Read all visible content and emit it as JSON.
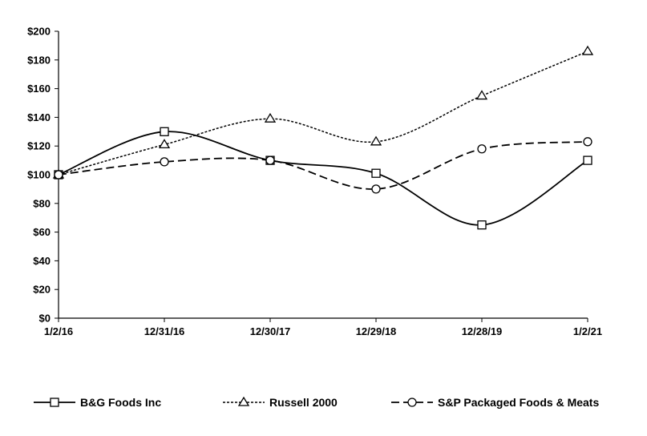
{
  "chart_data": {
    "type": "line",
    "title": "",
    "xlabel": "",
    "ylabel": "",
    "categories": [
      "1/2/16",
      "12/31/16",
      "12/30/17",
      "12/29/18",
      "12/28/19",
      "1/2/21"
    ],
    "y_ticks": [
      "$0",
      "$20",
      "$40",
      "$60",
      "$80",
      "$100",
      "$120",
      "$140",
      "$160",
      "$180",
      "$200"
    ],
    "ylim": [
      0,
      200
    ],
    "grid": false,
    "legend_position": "bottom",
    "series": [
      {
        "name": "B&G Foods Inc",
        "values": [
          100,
          130,
          110,
          101,
          65,
          110
        ],
        "line": "solid",
        "marker": "square",
        "color": "#000000"
      },
      {
        "name": "Russell 2000",
        "values": [
          100,
          121,
          139,
          123,
          155,
          186
        ],
        "line": "dotted",
        "marker": "triangle",
        "color": "#000000"
      },
      {
        "name": "S&P Packaged Foods & Meats",
        "values": [
          100,
          109,
          110,
          90,
          118,
          123
        ],
        "line": "dashed",
        "marker": "circle",
        "color": "#000000"
      }
    ]
  }
}
